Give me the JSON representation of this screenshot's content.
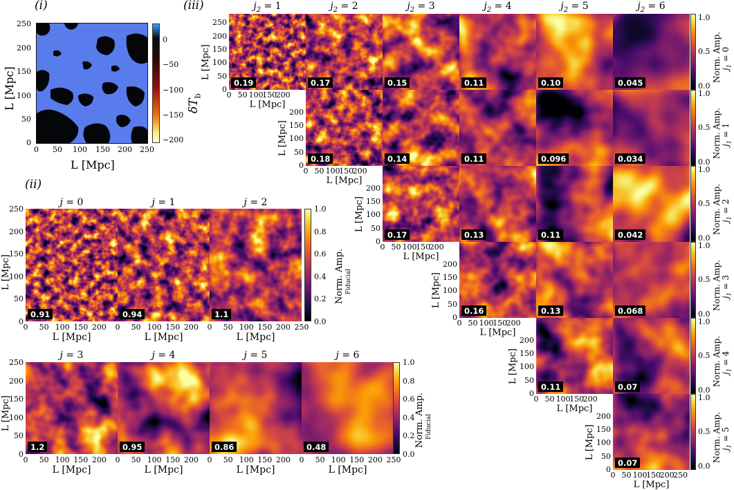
{
  "panel_labels": {
    "i": "(i)",
    "ii": "(ii)",
    "iii": "(iii)"
  },
  "axis": {
    "x_label": "L [Mpc]",
    "y_label": "L [Mpc]",
    "ticks_250": [
      "0",
      "50",
      "100",
      "150",
      "200",
      "250"
    ],
    "ticks_200": [
      "0",
      "50",
      "100",
      "150",
      "200"
    ],
    "ticks_y": [
      "0",
      "50",
      "100",
      "150",
      "200",
      "250"
    ]
  },
  "panel_i": {
    "colorbar_label": "δT",
    "colorbar_label_sub": "b",
    "colorbar_ticks": [
      "0",
      "−50",
      "−100",
      "−150",
      "−200"
    ],
    "colors": {
      "top": "#33a0ff",
      "mid": "#cc1010",
      "bottom": "#ffffc0",
      "field": "#1e34e6",
      "hole": "#05060a"
    }
  },
  "panel_ii": {
    "row1": [
      {
        "title_var": "j",
        "title_val": "0",
        "badge": "0.91"
      },
      {
        "title_var": "j",
        "title_val": "1",
        "badge": "0.94"
      },
      {
        "title_var": "j",
        "title_val": "2",
        "badge": "1.1"
      }
    ],
    "row2": [
      {
        "title_var": "j",
        "title_val": "3",
        "badge": "1.2"
      },
      {
        "title_var": "j",
        "title_val": "4",
        "badge": "0.95"
      },
      {
        "title_var": "j",
        "title_val": "5",
        "badge": "0.86"
      },
      {
        "title_var": "j",
        "title_val": "6",
        "badge": "0.48"
      }
    ],
    "colorbar_label": "Norm. Amp.",
    "colorbar_sublabel": "Fiducial",
    "colorbar_ticks": [
      "0.0",
      "0.2",
      "0.4",
      "0.6",
      "0.8",
      "1.0"
    ]
  },
  "panel_iii": {
    "col_titles": [
      "1",
      "2",
      "3",
      "4",
      "5",
      "6"
    ],
    "col_var": "j",
    "col_sub": "2",
    "row_var": "j",
    "row_sub": "1",
    "row_values": [
      "0",
      "1",
      "2",
      "3",
      "4",
      "5"
    ],
    "colorbar_label": "Norm. Amp.",
    "colorbar_ticks_top": "1.0",
    "colorbar_ticks_mid": "0.5",
    "colorbar_ticks_bot": "0.0",
    "badges": [
      [
        "0.19",
        "0.17",
        "0.15",
        "0.11",
        "0.10",
        "0.045"
      ],
      [
        "0.18",
        "0.14",
        "0.11",
        "0.096",
        "0.034"
      ],
      [
        "0.17",
        "0.13",
        "0.11",
        "0.042"
      ],
      [
        "0.16",
        "0.13",
        "0.068"
      ],
      [
        "0.11",
        "0.07"
      ],
      [
        "0.07"
      ]
    ]
  },
  "colormap_inferno": [
    "#000004",
    "#1b0c41",
    "#4a0c6b",
    "#781c6d",
    "#a52c60",
    "#cf4446",
    "#ed6925",
    "#fb9b06",
    "#f7d13d",
    "#fcffa4"
  ]
}
